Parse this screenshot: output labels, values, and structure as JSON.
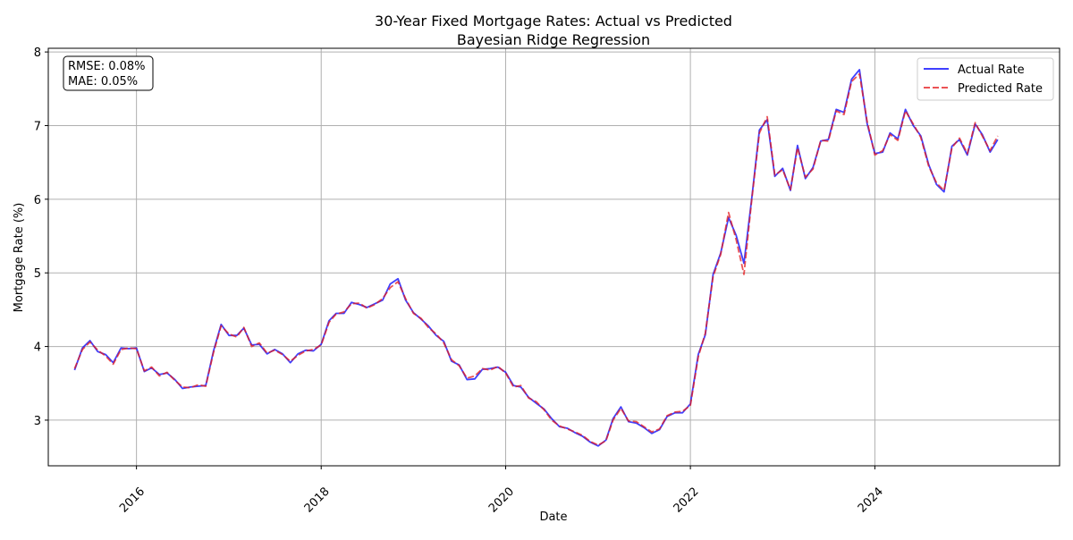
{
  "chart_data": {
    "type": "line",
    "title": "30-Year Fixed Mortgage Rates: Actual vs Predicted",
    "subtitle": "Bayesian Ridge Regression",
    "xlabel": "Date",
    "ylabel": "Mortgage Rate (%)",
    "x_ticks": [
      "2016",
      "2018",
      "2020",
      "2022",
      "2024"
    ],
    "y_ticks": [
      "3",
      "4",
      "5",
      "6",
      "7",
      "8"
    ],
    "xlim": [
      "2015-01-17",
      "2026-01-01"
    ],
    "ylim": [
      2.38,
      8.05
    ],
    "grid": true,
    "legend_position": "upper right",
    "metrics": [
      "RMSE: 0.08%",
      "MAE: 0.05%"
    ],
    "series": [
      {
        "name": "Actual Rate",
        "style": "solid",
        "color": "#0000ff",
        "points": [
          [
            "2015-05-01",
            3.68
          ],
          [
            "2015-06-01",
            3.98
          ],
          [
            "2015-07-01",
            4.08
          ],
          [
            "2015-08-01",
            3.93
          ],
          [
            "2015-09-01",
            3.89
          ],
          [
            "2015-10-01",
            3.78
          ],
          [
            "2015-11-01",
            3.98
          ],
          [
            "2015-12-01",
            3.97
          ],
          [
            "2016-01-01",
            3.98
          ],
          [
            "2016-02-01",
            3.66
          ],
          [
            "2016-03-01",
            3.71
          ],
          [
            "2016-04-01",
            3.62
          ],
          [
            "2016-05-01",
            3.64
          ],
          [
            "2016-06-01",
            3.55
          ],
          [
            "2016-07-01",
            3.43
          ],
          [
            "2016-08-01",
            3.45
          ],
          [
            "2016-09-01",
            3.46
          ],
          [
            "2016-10-01",
            3.47
          ],
          [
            "2016-11-01",
            3.94
          ],
          [
            "2016-12-01",
            4.3
          ],
          [
            "2017-01-01",
            4.15
          ],
          [
            "2017-02-01",
            4.15
          ],
          [
            "2017-03-01",
            4.25
          ],
          [
            "2017-04-01",
            4.02
          ],
          [
            "2017-05-01",
            4.03
          ],
          [
            "2017-06-01",
            3.9
          ],
          [
            "2017-07-01",
            3.96
          ],
          [
            "2017-08-01",
            3.9
          ],
          [
            "2017-09-01",
            3.78
          ],
          [
            "2017-10-01",
            3.9
          ],
          [
            "2017-11-01",
            3.95
          ],
          [
            "2017-12-01",
            3.94
          ],
          [
            "2018-01-01",
            4.03
          ],
          [
            "2018-02-01",
            4.35
          ],
          [
            "2018-03-01",
            4.45
          ],
          [
            "2018-04-01",
            4.45
          ],
          [
            "2018-05-01",
            4.6
          ],
          [
            "2018-06-01",
            4.57
          ],
          [
            "2018-07-01",
            4.53
          ],
          [
            "2018-08-01",
            4.58
          ],
          [
            "2018-09-01",
            4.63
          ],
          [
            "2018-10-01",
            4.85
          ],
          [
            "2018-11-01",
            4.92
          ],
          [
            "2018-12-01",
            4.63
          ],
          [
            "2019-01-01",
            4.46
          ],
          [
            "2019-02-01",
            4.37
          ],
          [
            "2019-03-01",
            4.28
          ],
          [
            "2019-04-01",
            4.15
          ],
          [
            "2019-05-01",
            4.07
          ],
          [
            "2019-06-01",
            3.8
          ],
          [
            "2019-07-01",
            3.75
          ],
          [
            "2019-08-01",
            3.55
          ],
          [
            "2019-09-01",
            3.56
          ],
          [
            "2019-10-01",
            3.69
          ],
          [
            "2019-11-01",
            3.7
          ],
          [
            "2019-12-01",
            3.72
          ],
          [
            "2020-01-01",
            3.65
          ],
          [
            "2020-02-01",
            3.47
          ],
          [
            "2020-03-01",
            3.45
          ],
          [
            "2020-04-01",
            3.31
          ],
          [
            "2020-05-01",
            3.23
          ],
          [
            "2020-06-01",
            3.15
          ],
          [
            "2020-07-01",
            3.02
          ],
          [
            "2020-08-01",
            2.91
          ],
          [
            "2020-09-01",
            2.89
          ],
          [
            "2020-10-01",
            2.83
          ],
          [
            "2020-11-01",
            2.78
          ],
          [
            "2020-12-01",
            2.7
          ],
          [
            "2021-01-01",
            2.65
          ],
          [
            "2021-02-01",
            2.73
          ],
          [
            "2021-03-01",
            3.02
          ],
          [
            "2021-04-01",
            3.18
          ],
          [
            "2021-05-01",
            2.98
          ],
          [
            "2021-06-01",
            2.96
          ],
          [
            "2021-07-01",
            2.9
          ],
          [
            "2021-08-01",
            2.82
          ],
          [
            "2021-09-01",
            2.87
          ],
          [
            "2021-10-01",
            3.05
          ],
          [
            "2021-11-01",
            3.1
          ],
          [
            "2021-12-01",
            3.1
          ],
          [
            "2022-01-01",
            3.22
          ],
          [
            "2022-02-01",
            3.89
          ],
          [
            "2022-03-01",
            4.16
          ],
          [
            "2022-04-01",
            4.98
          ],
          [
            "2022-05-01",
            5.27
          ],
          [
            "2022-06-01",
            5.75
          ],
          [
            "2022-07-01",
            5.51
          ],
          [
            "2022-08-01",
            5.13
          ],
          [
            "2022-09-01",
            6.02
          ],
          [
            "2022-10-01",
            6.94
          ],
          [
            "2022-11-01",
            7.08
          ],
          [
            "2022-12-01",
            6.31
          ],
          [
            "2023-01-01",
            6.42
          ],
          [
            "2023-02-01",
            6.12
          ],
          [
            "2023-03-01",
            6.73
          ],
          [
            "2023-04-01",
            6.28
          ],
          [
            "2023-05-01",
            6.43
          ],
          [
            "2023-06-01",
            6.79
          ],
          [
            "2023-07-01",
            6.81
          ],
          [
            "2023-08-01",
            7.22
          ],
          [
            "2023-09-01",
            7.18
          ],
          [
            "2023-10-01",
            7.63
          ],
          [
            "2023-11-01",
            7.76
          ],
          [
            "2023-12-01",
            7.03
          ],
          [
            "2024-01-01",
            6.62
          ],
          [
            "2024-02-01",
            6.64
          ],
          [
            "2024-03-01",
            6.9
          ],
          [
            "2024-04-01",
            6.82
          ],
          [
            "2024-05-01",
            7.22
          ],
          [
            "2024-06-01",
            7.0
          ],
          [
            "2024-07-01",
            6.86
          ],
          [
            "2024-08-01",
            6.47
          ],
          [
            "2024-09-01",
            6.2
          ],
          [
            "2024-10-01",
            6.1
          ],
          [
            "2024-11-01",
            6.72
          ],
          [
            "2024-12-01",
            6.81
          ],
          [
            "2025-01-01",
            6.6
          ],
          [
            "2025-02-01",
            7.02
          ],
          [
            "2025-03-01",
            6.88
          ],
          [
            "2025-04-01",
            6.64
          ],
          [
            "2025-05-01",
            6.81
          ]
        ]
      },
      {
        "name": "Predicted Rate",
        "style": "dashed",
        "color": "#e41a1c",
        "points": [
          [
            "2015-05-01",
            3.7
          ],
          [
            "2015-06-01",
            3.96
          ],
          [
            "2015-07-01",
            4.06
          ],
          [
            "2015-08-01",
            3.95
          ],
          [
            "2015-09-01",
            3.87
          ],
          [
            "2015-10-01",
            3.76
          ],
          [
            "2015-11-01",
            3.96
          ],
          [
            "2015-12-01",
            3.98
          ],
          [
            "2016-01-01",
            3.97
          ],
          [
            "2016-02-01",
            3.67
          ],
          [
            "2016-03-01",
            3.72
          ],
          [
            "2016-04-01",
            3.6
          ],
          [
            "2016-05-01",
            3.65
          ],
          [
            "2016-06-01",
            3.54
          ],
          [
            "2016-07-01",
            3.45
          ],
          [
            "2016-08-01",
            3.44
          ],
          [
            "2016-09-01",
            3.48
          ],
          [
            "2016-10-01",
            3.46
          ],
          [
            "2016-11-01",
            3.92
          ],
          [
            "2016-12-01",
            4.28
          ],
          [
            "2017-01-01",
            4.17
          ],
          [
            "2017-02-01",
            4.13
          ],
          [
            "2017-03-01",
            4.26
          ],
          [
            "2017-04-01",
            4.0
          ],
          [
            "2017-05-01",
            4.05
          ],
          [
            "2017-06-01",
            3.91
          ],
          [
            "2017-07-01",
            3.95
          ],
          [
            "2017-08-01",
            3.89
          ],
          [
            "2017-09-01",
            3.8
          ],
          [
            "2017-10-01",
            3.88
          ],
          [
            "2017-11-01",
            3.94
          ],
          [
            "2017-12-01",
            3.96
          ],
          [
            "2018-01-01",
            4.02
          ],
          [
            "2018-02-01",
            4.33
          ],
          [
            "2018-03-01",
            4.44
          ],
          [
            "2018-04-01",
            4.47
          ],
          [
            "2018-05-01",
            4.58
          ],
          [
            "2018-06-01",
            4.59
          ],
          [
            "2018-07-01",
            4.52
          ],
          [
            "2018-08-01",
            4.57
          ],
          [
            "2018-09-01",
            4.65
          ],
          [
            "2018-10-01",
            4.8
          ],
          [
            "2018-11-01",
            4.88
          ],
          [
            "2018-12-01",
            4.65
          ],
          [
            "2019-01-01",
            4.45
          ],
          [
            "2019-02-01",
            4.38
          ],
          [
            "2019-03-01",
            4.26
          ],
          [
            "2019-04-01",
            4.17
          ],
          [
            "2019-05-01",
            4.05
          ],
          [
            "2019-06-01",
            3.82
          ],
          [
            "2019-07-01",
            3.74
          ],
          [
            "2019-08-01",
            3.57
          ],
          [
            "2019-09-01",
            3.6
          ],
          [
            "2019-10-01",
            3.7
          ],
          [
            "2019-11-01",
            3.68
          ],
          [
            "2019-12-01",
            3.73
          ],
          [
            "2020-01-01",
            3.64
          ],
          [
            "2020-02-01",
            3.45
          ],
          [
            "2020-03-01",
            3.47
          ],
          [
            "2020-04-01",
            3.3
          ],
          [
            "2020-05-01",
            3.25
          ],
          [
            "2020-06-01",
            3.14
          ],
          [
            "2020-07-01",
            3.0
          ],
          [
            "2020-08-01",
            2.92
          ],
          [
            "2020-09-01",
            2.88
          ],
          [
            "2020-10-01",
            2.84
          ],
          [
            "2020-11-01",
            2.79
          ],
          [
            "2020-12-01",
            2.71
          ],
          [
            "2021-01-01",
            2.66
          ],
          [
            "2021-02-01",
            2.72
          ],
          [
            "2021-03-01",
            3.0
          ],
          [
            "2021-04-01",
            3.16
          ],
          [
            "2021-05-01",
            2.99
          ],
          [
            "2021-06-01",
            2.98
          ],
          [
            "2021-07-01",
            2.91
          ],
          [
            "2021-08-01",
            2.84
          ],
          [
            "2021-09-01",
            2.88
          ],
          [
            "2021-10-01",
            3.06
          ],
          [
            "2021-11-01",
            3.11
          ],
          [
            "2021-12-01",
            3.12
          ],
          [
            "2022-01-01",
            3.2
          ],
          [
            "2022-02-01",
            3.86
          ],
          [
            "2022-03-01",
            4.18
          ],
          [
            "2022-04-01",
            4.95
          ],
          [
            "2022-05-01",
            5.25
          ],
          [
            "2022-06-01",
            5.82
          ],
          [
            "2022-07-01",
            5.45
          ],
          [
            "2022-08-01",
            4.98
          ],
          [
            "2022-09-01",
            6.0
          ],
          [
            "2022-10-01",
            6.9
          ],
          [
            "2022-11-01",
            7.12
          ],
          [
            "2022-12-01",
            6.33
          ],
          [
            "2023-01-01",
            6.4
          ],
          [
            "2023-02-01",
            6.13
          ],
          [
            "2023-03-01",
            6.7
          ],
          [
            "2023-04-01",
            6.3
          ],
          [
            "2023-05-01",
            6.41
          ],
          [
            "2023-06-01",
            6.8
          ],
          [
            "2023-07-01",
            6.79
          ],
          [
            "2023-08-01",
            7.2
          ],
          [
            "2023-09-01",
            7.15
          ],
          [
            "2023-10-01",
            7.6
          ],
          [
            "2023-11-01",
            7.7
          ],
          [
            "2023-12-01",
            7.06
          ],
          [
            "2024-01-01",
            6.6
          ],
          [
            "2024-02-01",
            6.66
          ],
          [
            "2024-03-01",
            6.88
          ],
          [
            "2024-04-01",
            6.8
          ],
          [
            "2024-05-01",
            7.2
          ],
          [
            "2024-06-01",
            7.02
          ],
          [
            "2024-07-01",
            6.84
          ],
          [
            "2024-08-01",
            6.45
          ],
          [
            "2024-09-01",
            6.22
          ],
          [
            "2024-10-01",
            6.12
          ],
          [
            "2024-11-01",
            6.7
          ],
          [
            "2024-12-01",
            6.83
          ],
          [
            "2025-01-01",
            6.62
          ],
          [
            "2025-02-01",
            7.04
          ],
          [
            "2025-03-01",
            6.86
          ],
          [
            "2025-04-01",
            6.66
          ],
          [
            "2025-05-01",
            6.86
          ]
        ]
      }
    ]
  }
}
